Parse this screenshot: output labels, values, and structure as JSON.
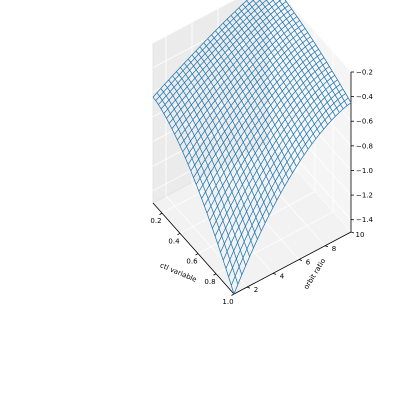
{
  "chart_data": {
    "type": "surface",
    "style": "wireframe",
    "title": "",
    "xlabel": "ctl variable",
    "ylabel": "orbit ratio",
    "zlabel": "",
    "x_range": [
      0.1,
      1.0
    ],
    "y_range": [
      1,
      10
    ],
    "z_range": [
      -1.5,
      -0.2
    ],
    "x_ticks": [
      0.2,
      0.4,
      0.6,
      0.8,
      1.0
    ],
    "x_tick_labels": [
      "0.2",
      "0.4",
      "0.6",
      "0.8",
      "1.0"
    ],
    "y_ticks": [
      2,
      4,
      6,
      8,
      10
    ],
    "y_tick_labels": [
      "2",
      "4",
      "6",
      "8",
      "10"
    ],
    "z_ticks": [
      -1.4,
      -1.2,
      -1.0,
      -0.8,
      -0.6,
      -0.4,
      -0.2
    ],
    "z_tick_labels": [
      "−1.4",
      "−1.2",
      "−1.0",
      "−0.8",
      "−0.6",
      "−0.4",
      "−0.2"
    ],
    "grid": true,
    "wire_color": "#1f77b4",
    "surface_samples": [
      {
        "x": 0.1,
        "y": 10,
        "z": -0.2
      },
      {
        "x": 0.1,
        "y": 1,
        "z": -0.64
      },
      {
        "x": 1.0,
        "y": 10,
        "z": -0.45
      },
      {
        "x": 1.0,
        "y": 1,
        "z": -1.5
      }
    ],
    "grid_resolution": [
      30,
      30
    ]
  }
}
